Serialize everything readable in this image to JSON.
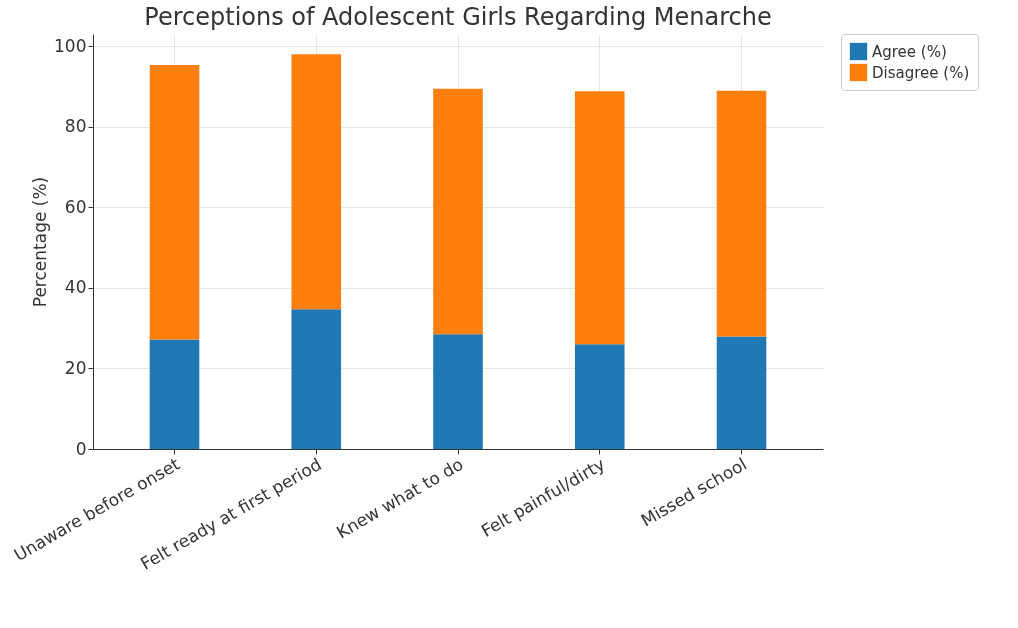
{
  "chart_data": {
    "type": "bar",
    "title": "Perceptions of Adolescent Girls Regarding Menarche",
    "categories": [
      "Unaware before onset",
      "Felt ready at first period",
      "Knew what to do",
      "Felt painful/dirty",
      "Missed school"
    ],
    "series": [
      {
        "name": "Agree (%)",
        "color": "#1f77b4",
        "values": [
          27.2,
          34.7,
          28.5,
          26.0,
          27.9
        ]
      },
      {
        "name": "Disagree (%)",
        "color": "#ff7f0e",
        "values": [
          68.1,
          63.3,
          60.9,
          62.8,
          61.0
        ]
      }
    ],
    "stacked": true,
    "ylabel": "Percentage (%)",
    "ylim": [
      0,
      103
    ],
    "yticks": [
      0,
      20,
      40,
      60,
      80,
      100
    ],
    "grid": true,
    "legend": "top right"
  }
}
